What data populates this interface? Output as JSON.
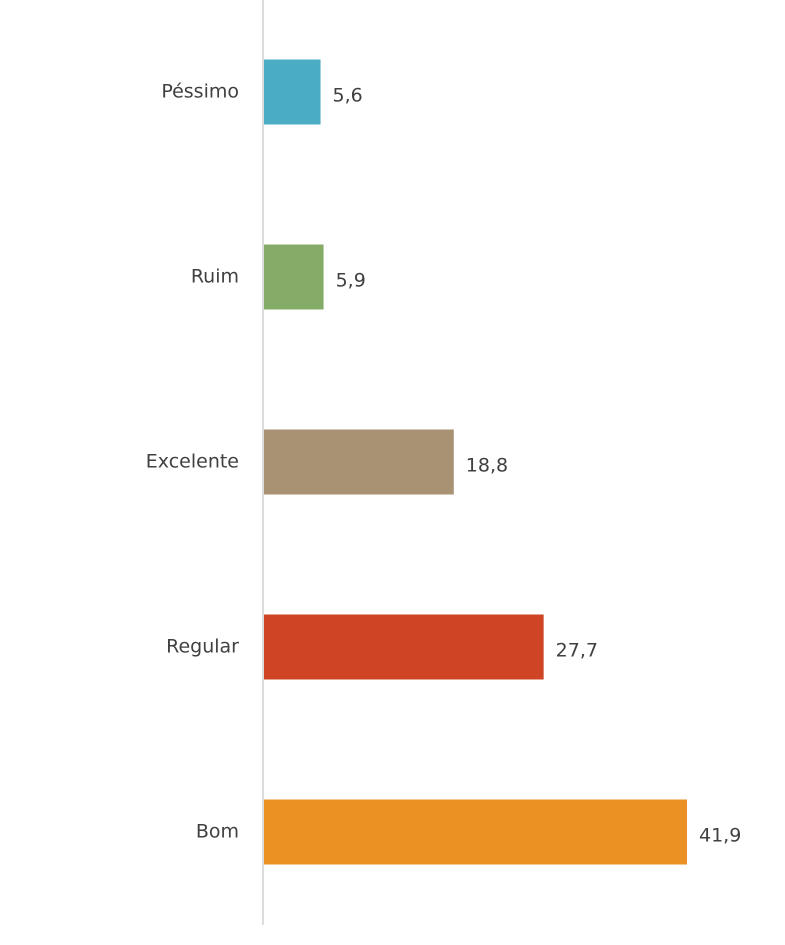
{
  "chart_data": {
    "type": "bar",
    "orientation": "horizontal",
    "categories": [
      "Péssimo",
      "Ruim",
      "Excelente",
      "Regular",
      "Bom"
    ],
    "values": [
      5.6,
      5.9,
      18.8,
      27.7,
      41.9
    ],
    "value_labels": [
      "5,6",
      "5,9",
      "18,8",
      "27,7",
      "41,9"
    ],
    "colors": [
      "#4bacc6",
      "#84ab67",
      "#a99273",
      "#cf4424",
      "#eb9023"
    ]
  }
}
